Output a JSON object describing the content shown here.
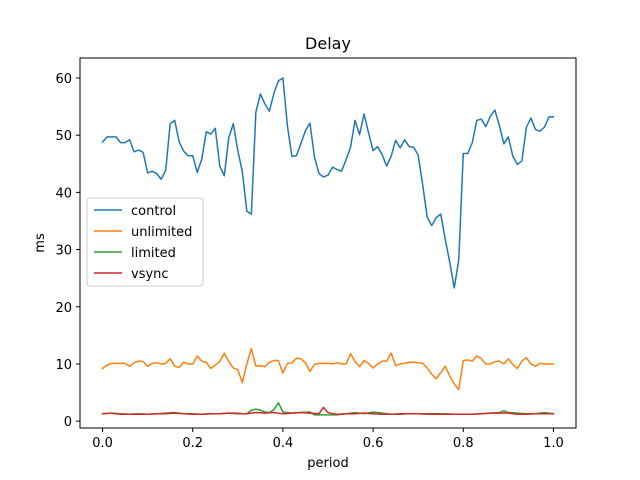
{
  "chart_data": {
    "type": "line",
    "title": "Delay",
    "xlabel": "period",
    "ylabel": "ms",
    "xlim": [
      -0.05,
      1.05
    ],
    "ylim": [
      -1.2,
      63.5
    ],
    "xticks": [
      0.0,
      0.2,
      0.4,
      0.6,
      0.8,
      1.0
    ],
    "xtick_labels": [
      "0.0",
      "0.2",
      "0.4",
      "0.6",
      "0.8",
      "1.0"
    ],
    "yticks": [
      0,
      10,
      20,
      30,
      40,
      50,
      60
    ],
    "ytick_labels": [
      "0",
      "10",
      "20",
      "30",
      "40",
      "50",
      "60"
    ],
    "grid": false,
    "legend_position": "center-left",
    "series": [
      {
        "name": "control",
        "color": "#1f77b4",
        "x": [
          0.0,
          0.01,
          0.02,
          0.03,
          0.04,
          0.05,
          0.06,
          0.07,
          0.08,
          0.09,
          0.1,
          0.11,
          0.12,
          0.13,
          0.14,
          0.15,
          0.16,
          0.17,
          0.18,
          0.19,
          0.2,
          0.21,
          0.22,
          0.23,
          0.24,
          0.25,
          0.26,
          0.27,
          0.28,
          0.29,
          0.3,
          0.31,
          0.32,
          0.33,
          0.34,
          0.35,
          0.36,
          0.37,
          0.38,
          0.39,
          0.4,
          0.41,
          0.42,
          0.43,
          0.44,
          0.45,
          0.46,
          0.47,
          0.48,
          0.49,
          0.5,
          0.51,
          0.52,
          0.53,
          0.54,
          0.55,
          0.56,
          0.57,
          0.58,
          0.59,
          0.6,
          0.61,
          0.62,
          0.63,
          0.64,
          0.65,
          0.66,
          0.67,
          0.68,
          0.69,
          0.7,
          0.71,
          0.72,
          0.73,
          0.74,
          0.75,
          0.76,
          0.77,
          0.78,
          0.79,
          0.8,
          0.81,
          0.82,
          0.83,
          0.84,
          0.85,
          0.86,
          0.87,
          0.88,
          0.89,
          0.9,
          0.91,
          0.92,
          0.93,
          0.94,
          0.95,
          0.96,
          0.97,
          0.98,
          0.99,
          1.0
        ],
        "y": [
          48.8,
          49.7,
          49.7,
          49.7,
          48.7,
          48.7,
          49.2,
          47.1,
          47.4,
          47.0,
          43.4,
          43.7,
          43.3,
          42.3,
          43.8,
          52.0,
          52.6,
          48.8,
          47.2,
          46.4,
          46.4,
          43.5,
          45.8,
          50.6,
          50.2,
          51.2,
          44.6,
          42.9,
          49.6,
          52.0,
          47.3,
          43.6,
          36.7,
          36.2,
          54.0,
          57.2,
          55.5,
          54.2,
          57.3,
          59.5,
          60.0,
          51.6,
          46.3,
          46.4,
          48.6,
          50.8,
          52.1,
          46.2,
          43.3,
          42.7,
          43.0,
          44.4,
          44.0,
          43.7,
          45.7,
          47.9,
          52.6,
          50.1,
          53.7,
          50.4,
          47.3,
          48.0,
          46.6,
          44.6,
          46.3,
          49.1,
          47.8,
          49.2,
          48.0,
          47.9,
          46.5,
          41.3,
          35.7,
          34.2,
          35.6,
          36.2,
          31.8,
          27.8,
          23.3,
          28.2,
          46.8,
          46.8,
          48.7,
          52.6,
          52.8,
          51.5,
          53.3,
          54.4,
          51.7,
          48.5,
          49.7,
          46.3,
          44.9,
          45.5,
          51.4,
          53.0,
          51.0,
          50.7,
          51.4,
          53.2,
          53.2
        ]
      },
      {
        "name": "unlimited",
        "color": "#ff7f0e",
        "x": [
          0.0,
          0.01,
          0.02,
          0.03,
          0.04,
          0.05,
          0.06,
          0.07,
          0.08,
          0.09,
          0.1,
          0.11,
          0.12,
          0.13,
          0.14,
          0.15,
          0.16,
          0.17,
          0.18,
          0.19,
          0.2,
          0.21,
          0.22,
          0.23,
          0.24,
          0.25,
          0.26,
          0.27,
          0.28,
          0.29,
          0.3,
          0.31,
          0.32,
          0.33,
          0.34,
          0.35,
          0.36,
          0.37,
          0.38,
          0.39,
          0.4,
          0.41,
          0.42,
          0.43,
          0.44,
          0.45,
          0.46,
          0.47,
          0.48,
          0.49,
          0.5,
          0.51,
          0.52,
          0.53,
          0.54,
          0.55,
          0.56,
          0.57,
          0.58,
          0.59,
          0.6,
          0.61,
          0.62,
          0.63,
          0.64,
          0.65,
          0.66,
          0.67,
          0.68,
          0.69,
          0.7,
          0.71,
          0.72,
          0.73,
          0.74,
          0.75,
          0.76,
          0.77,
          0.78,
          0.79,
          0.8,
          0.81,
          0.82,
          0.83,
          0.84,
          0.85,
          0.86,
          0.87,
          0.88,
          0.89,
          0.9,
          0.91,
          0.92,
          0.93,
          0.94,
          0.95,
          0.96,
          0.97,
          0.98,
          0.99,
          1.0
        ],
        "y": [
          9.2,
          9.8,
          10.1,
          10.1,
          10.1,
          10.1,
          9.6,
          10.2,
          10.5,
          10.4,
          9.6,
          10.1,
          10.2,
          10.0,
          10.1,
          10.9,
          9.6,
          9.4,
          10.3,
          10.0,
          10.0,
          11.4,
          10.5,
          10.3,
          9.2,
          9.8,
          10.4,
          11.9,
          10.4,
          9.3,
          9.0,
          6.7,
          10.0,
          12.7,
          9.6,
          9.7,
          9.5,
          10.3,
          10.6,
          10.6,
          8.4,
          10.1,
          10.2,
          11.0,
          10.9,
          10.2,
          8.7,
          9.9,
          10.1,
          10.1,
          10.1,
          10.0,
          10.2,
          10.0,
          10.0,
          11.8,
          10.4,
          9.5,
          10.6,
          10.1,
          9.3,
          10.0,
          10.5,
          10.5,
          11.9,
          9.7,
          10.0,
          10.1,
          10.3,
          10.3,
          10.2,
          10.1,
          9.3,
          8.2,
          7.4,
          8.5,
          9.6,
          7.9,
          6.5,
          5.5,
          10.6,
          10.7,
          10.5,
          11.4,
          10.9,
          10.0,
          10.0,
          10.4,
          10.5,
          10.0,
          10.9,
          9.9,
          9.2,
          10.5,
          11.1,
          10.0,
          9.6,
          10.1,
          10.0,
          10.0,
          10.0
        ]
      },
      {
        "name": "limited",
        "color": "#2ca02c",
        "x": [
          0.0,
          0.02,
          0.04,
          0.06,
          0.08,
          0.1,
          0.12,
          0.14,
          0.16,
          0.18,
          0.2,
          0.22,
          0.24,
          0.26,
          0.28,
          0.3,
          0.31,
          0.32,
          0.33,
          0.34,
          0.35,
          0.36,
          0.37,
          0.38,
          0.39,
          0.4,
          0.41,
          0.42,
          0.44,
          0.46,
          0.47,
          0.48,
          0.49,
          0.5,
          0.52,
          0.54,
          0.56,
          0.58,
          0.6,
          0.62,
          0.64,
          0.66,
          0.68,
          0.7,
          0.72,
          0.74,
          0.76,
          0.78,
          0.8,
          0.82,
          0.84,
          0.86,
          0.88,
          0.89,
          0.9,
          0.92,
          0.94,
          0.96,
          0.98,
          1.0
        ],
        "y": [
          1.3,
          1.4,
          1.3,
          1.2,
          1.3,
          1.2,
          1.3,
          1.4,
          1.5,
          1.3,
          1.3,
          1.2,
          1.3,
          1.3,
          1.4,
          1.4,
          1.3,
          1.3,
          1.9,
          2.1,
          1.9,
          1.6,
          1.5,
          2.0,
          3.2,
          1.6,
          1.5,
          1.4,
          1.5,
          1.6,
          1.1,
          1.1,
          1.1,
          1.1,
          1.1,
          1.3,
          1.5,
          1.3,
          1.6,
          1.4,
          1.2,
          1.2,
          1.3,
          1.3,
          1.3,
          1.3,
          1.3,
          1.2,
          1.2,
          1.2,
          1.3,
          1.4,
          1.5,
          1.8,
          1.5,
          1.4,
          1.3,
          1.3,
          1.5,
          1.3
        ]
      },
      {
        "name": "vsync",
        "color": "#d62728",
        "x": [
          0.0,
          0.02,
          0.04,
          0.06,
          0.08,
          0.1,
          0.12,
          0.14,
          0.16,
          0.18,
          0.2,
          0.22,
          0.24,
          0.26,
          0.28,
          0.3,
          0.32,
          0.34,
          0.36,
          0.38,
          0.4,
          0.42,
          0.44,
          0.46,
          0.48,
          0.49,
          0.5,
          0.51,
          0.52,
          0.54,
          0.56,
          0.58,
          0.6,
          0.62,
          0.64,
          0.66,
          0.68,
          0.7,
          0.72,
          0.74,
          0.76,
          0.78,
          0.8,
          0.82,
          0.84,
          0.86,
          0.88,
          0.9,
          0.92,
          0.94,
          0.96,
          0.98,
          1.0
        ],
        "y": [
          1.3,
          1.4,
          1.2,
          1.2,
          1.2,
          1.2,
          1.3,
          1.3,
          1.4,
          1.3,
          1.2,
          1.2,
          1.3,
          1.3,
          1.4,
          1.3,
          1.3,
          1.5,
          1.4,
          1.5,
          1.3,
          1.4,
          1.5,
          1.4,
          1.3,
          2.4,
          1.5,
          1.3,
          1.2,
          1.3,
          1.3,
          1.4,
          1.3,
          1.2,
          1.2,
          1.3,
          1.3,
          1.3,
          1.2,
          1.2,
          1.2,
          1.2,
          1.2,
          1.2,
          1.3,
          1.4,
          1.4,
          1.4,
          1.2,
          1.2,
          1.3,
          1.3,
          1.3
        ]
      }
    ]
  }
}
